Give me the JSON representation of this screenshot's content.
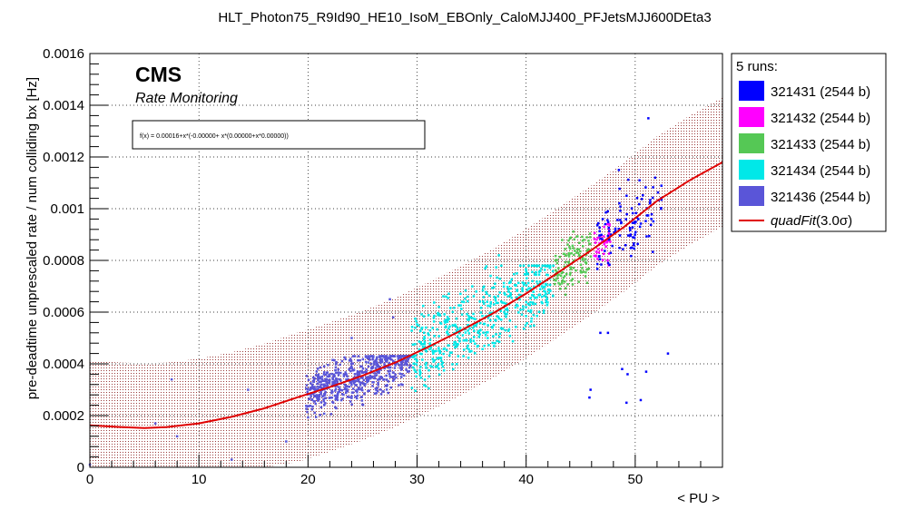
{
  "page": {
    "title": "HLT_Photon75_R9Id90_HE10_IsoM_EBOnly_CaloMJJ400_PFJetsMJJ600DEta3",
    "brand": "CMS",
    "subtitle": "Rate Monitoring",
    "formula": "f(x) = 0.00016+x*(-0.00000+ x*(0.00000+x*0.00000))"
  },
  "legend": {
    "header": "5 runs:",
    "fit_label": "quadFit",
    "fit_suffix": "(3.0σ)"
  },
  "chart_data": {
    "type": "scatter",
    "title": "HLT_Photon75_R9Id90_HE10_IsoM_EBOnly_CaloMJJ400_PFJetsMJJ600DEta3",
    "xlabel": "< PU >",
    "ylabel": "pre-deadtime unprescaled rate / num colliding bx [Hz]",
    "xlim": [
      0,
      58
    ],
    "ylim": [
      0,
      0.0016
    ],
    "x_ticks": [
      "0",
      "10",
      "20",
      "30",
      "40",
      "50"
    ],
    "y_ticks": [
      "0",
      "0.0002",
      "0.0004",
      "0.0006",
      "0.0008",
      "0.001",
      "0.0012",
      "0.0014",
      "0.0016"
    ],
    "grid": true,
    "legend_position": "right",
    "fit": {
      "name": "quadFit(3.0σ)",
      "color": "#e00000",
      "band_color": "#9a3a3a",
      "band_halfwidth": 0.00025,
      "curve_x": [
        0,
        3,
        5,
        7,
        10,
        13,
        16,
        19,
        22,
        25,
        28,
        31,
        34,
        37,
        40,
        43,
        46,
        49,
        52,
        55,
        58
      ],
      "curve_y": [
        0.000162,
        0.000155,
        0.000152,
        0.000155,
        0.00017,
        0.000195,
        0.000228,
        0.00027,
        0.00031,
        0.000354,
        0.000405,
        0.000465,
        0.000528,
        0.000596,
        0.000672,
        0.000755,
        0.00084,
        0.00093,
        0.00103,
        0.00111,
        0.00118
      ]
    },
    "series": [
      {
        "name": "321431 (2544 b)",
        "color": "#0000ff",
        "clusters": [
          {
            "x": [
              46.5,
              52.5
            ],
            "y": [
              0.00062,
              0.00112
            ],
            "n": 110
          }
        ],
        "points": [
          [
            51.2,
            0.00135
          ],
          [
            48.5,
            0.00115
          ],
          [
            46.8,
            0.00052
          ],
          [
            53.0,
            0.00044
          ],
          [
            48.8,
            0.00038
          ],
          [
            49.3,
            0.00036
          ],
          [
            51.0,
            0.00037
          ],
          [
            45.9,
            0.0003
          ],
          [
            49.2,
            0.00025
          ],
          [
            50.5,
            0.00026
          ],
          [
            47.5,
            0.00052
          ],
          [
            45.8,
            0.00027
          ]
        ]
      },
      {
        "name": "321432 (2544 b)",
        "color": "#ff00ff",
        "clusters": [
          {
            "x": [
              46.2,
              47.8
            ],
            "y": [
              0.00062,
              0.00094
            ],
            "n": 40
          }
        ],
        "points": []
      },
      {
        "name": "321433 (2544 b)",
        "color": "#55c855",
        "clusters": [
          {
            "x": [
              42.5,
              46.0
            ],
            "y": [
              0.0006,
              0.00098
            ],
            "n": 120
          }
        ],
        "points": []
      },
      {
        "name": "321434 (2544 b)",
        "color": "#00e8e8",
        "clusters": [
          {
            "x": [
              29.5,
              42.5
            ],
            "y": [
              0.00025,
              0.00078
            ],
            "n": 520
          }
        ],
        "points": [
          [
            37.5,
            0.00082
          ],
          [
            32.0,
            0.00062
          ]
        ]
      },
      {
        "name": "321436 (2544 b)",
        "color": "#5a55d8",
        "clusters": [
          {
            "x": [
              19.8,
              29.5
            ],
            "y": [
              0.00012,
              0.00043
            ],
            "n": 600
          }
        ],
        "points": [
          [
            27.5,
            0.00065
          ],
          [
            27.8,
            0.00058
          ],
          [
            24.0,
            0.0005
          ],
          [
            14.5,
            0.0003
          ],
          [
            7.5,
            0.00034
          ],
          [
            6.0,
            0.00017
          ],
          [
            8.0,
            0.00012
          ],
          [
            13.0,
            3e-05
          ],
          [
            18.0,
            0.0001
          ],
          [
            0.0,
            1e-05
          ]
        ]
      }
    ]
  }
}
